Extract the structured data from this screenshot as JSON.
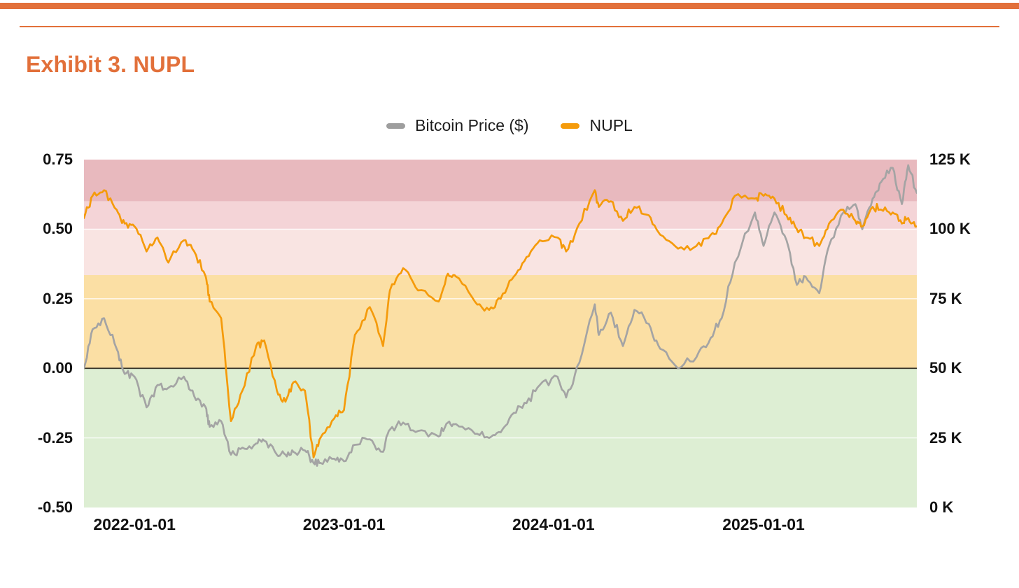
{
  "page": {
    "title": "Exhibit 3. NUPL"
  },
  "theme": {
    "accent": "#e2703a",
    "text": "#1c1c1c"
  },
  "legend": {
    "items": [
      {
        "label": "Bitcoin Price ($)",
        "color": "#9e9e9e"
      },
      {
        "label": "NUPL",
        "color": "#f59b0b"
      }
    ]
  },
  "chart_data": {
    "type": "line",
    "title": "Exhibit 3. NUPL",
    "legend_position": "top-center",
    "x": [
      "2021-10-05",
      "2021-10-20",
      "2021-11-09",
      "2021-12-01",
      "2021-12-15",
      "2022-01-01",
      "2022-01-22",
      "2022-02-10",
      "2022-03-01",
      "2022-03-28",
      "2022-04-15",
      "2022-05-05",
      "2022-05-12",
      "2022-06-01",
      "2022-06-18",
      "2022-07-08",
      "2022-08-01",
      "2022-08-15",
      "2022-09-06",
      "2022-09-21",
      "2022-10-05",
      "2022-10-25",
      "2022-11-09",
      "2022-11-21",
      "2022-12-15",
      "2023-01-01",
      "2023-01-20",
      "2023-02-15",
      "2023-03-10",
      "2023-03-22",
      "2023-04-14",
      "2023-05-10",
      "2023-06-15",
      "2023-07-01",
      "2023-07-15",
      "2023-08-17",
      "2023-09-11",
      "2023-10-01",
      "2023-10-24",
      "2023-11-15",
      "2023-12-08",
      "2024-01-08",
      "2024-01-23",
      "2024-02-15",
      "2024-03-13",
      "2024-03-20",
      "2024-04-10",
      "2024-05-01",
      "2024-05-21",
      "2024-06-15",
      "2024-07-05",
      "2024-08-05",
      "2024-09-06",
      "2024-10-01",
      "2024-10-20",
      "2024-11-12",
      "2024-12-17",
      "2025-01-01",
      "2025-01-20",
      "2025-02-10",
      "2025-02-28",
      "2025-03-15",
      "2025-04-08",
      "2025-04-25",
      "2025-05-20",
      "2025-06-10",
      "2025-06-22",
      "2025-07-10",
      "2025-07-25",
      "2025-08-14",
      "2025-08-30",
      "2025-09-10",
      "2025-09-25"
    ],
    "series": [
      {
        "name": "Bitcoin Price ($)",
        "axis": "right",
        "color": "#a4a4a4",
        "values": [
          50,
          64,
          68,
          57,
          48,
          47,
          36,
          44,
          43,
          47,
          40,
          36,
          29,
          31,
          19,
          21.5,
          23,
          24,
          19,
          19,
          20,
          20.5,
          16,
          16,
          17.5,
          16.6,
          22.5,
          24.5,
          20,
          28,
          30.5,
          27.5,
          25.5,
          30.5,
          30,
          26.5,
          25,
          27,
          34,
          37.5,
          44,
          47,
          39.5,
          52,
          73,
          62,
          70,
          58,
          71,
          66,
          57,
          50,
          54,
          61,
          68,
          88,
          106,
          94,
          106,
          96,
          80,
          83,
          77,
          94,
          106,
          109,
          100,
          111,
          117,
          122,
          109,
          123,
          113
        ]
      },
      {
        "name": "NUPL",
        "axis": "left",
        "color": "#f59b0b",
        "values": [
          0.54,
          0.62,
          0.64,
          0.57,
          0.52,
          0.51,
          0.42,
          0.47,
          0.38,
          0.46,
          0.42,
          0.33,
          0.24,
          0.18,
          -0.19,
          -0.08,
          0.08,
          0.1,
          -0.08,
          -0.12,
          -0.05,
          -0.08,
          -0.32,
          -0.25,
          -0.18,
          -0.15,
          0.12,
          0.22,
          0.08,
          0.28,
          0.36,
          0.28,
          0.24,
          0.34,
          0.33,
          0.24,
          0.21,
          0.25,
          0.33,
          0.4,
          0.46,
          0.47,
          0.42,
          0.52,
          0.64,
          0.58,
          0.6,
          0.53,
          0.58,
          0.55,
          0.48,
          0.43,
          0.44,
          0.48,
          0.52,
          0.62,
          0.61,
          0.62,
          0.61,
          0.55,
          0.5,
          0.47,
          0.44,
          0.52,
          0.57,
          0.53,
          0.51,
          0.58,
          0.57,
          0.56,
          0.52,
          0.54,
          0.51
        ]
      }
    ],
    "left_axis": {
      "range": [
        -0.5,
        0.75
      ],
      "ticks": [
        {
          "v": 0.75,
          "label": "0.75"
        },
        {
          "v": 0.5,
          "label": "0.50"
        },
        {
          "v": 0.25,
          "label": "0.25"
        },
        {
          "v": 0.0,
          "label": "0.00"
        },
        {
          "v": -0.25,
          "label": "-0.25"
        },
        {
          "v": -0.5,
          "label": "-0.50"
        }
      ]
    },
    "right_axis": {
      "range": [
        0,
        125
      ],
      "unit": "K",
      "ticks": [
        {
          "v": 125,
          "label": "125 K"
        },
        {
          "v": 100,
          "label": "100 K"
        },
        {
          "v": 75,
          "label": "75 K"
        },
        {
          "v": 50,
          "label": "50 K"
        },
        {
          "v": 25,
          "label": "25 K"
        },
        {
          "v": 0,
          "label": "0 K"
        }
      ]
    },
    "x_ticks": [
      {
        "date": "2022-01-01",
        "label": "2022-01-01"
      },
      {
        "date": "2023-01-01",
        "label": "2023-01-01"
      },
      {
        "date": "2024-01-01",
        "label": "2024-01-01"
      },
      {
        "date": "2025-01-01",
        "label": "2025-01-01"
      }
    ],
    "zones": [
      {
        "from": 0.6,
        "to": 0.75,
        "color": "#e8b9be"
      },
      {
        "from": 0.5,
        "to": 0.6,
        "color": "#f4d4d7"
      },
      {
        "from": 0.335,
        "to": 0.5,
        "color": "#f9e4e2"
      },
      {
        "from": 0.0,
        "to": 0.335,
        "color": "#fbdfa4"
      },
      {
        "from": -0.5,
        "to": 0.0,
        "color": "#ddeed3"
      }
    ],
    "grid": {
      "values": [
        0.5,
        0.25,
        -0.25
      ],
      "color": "rgba(255,255,255,0.85)"
    },
    "zero_line": {
      "value": 0,
      "color": "#3a372c"
    }
  }
}
